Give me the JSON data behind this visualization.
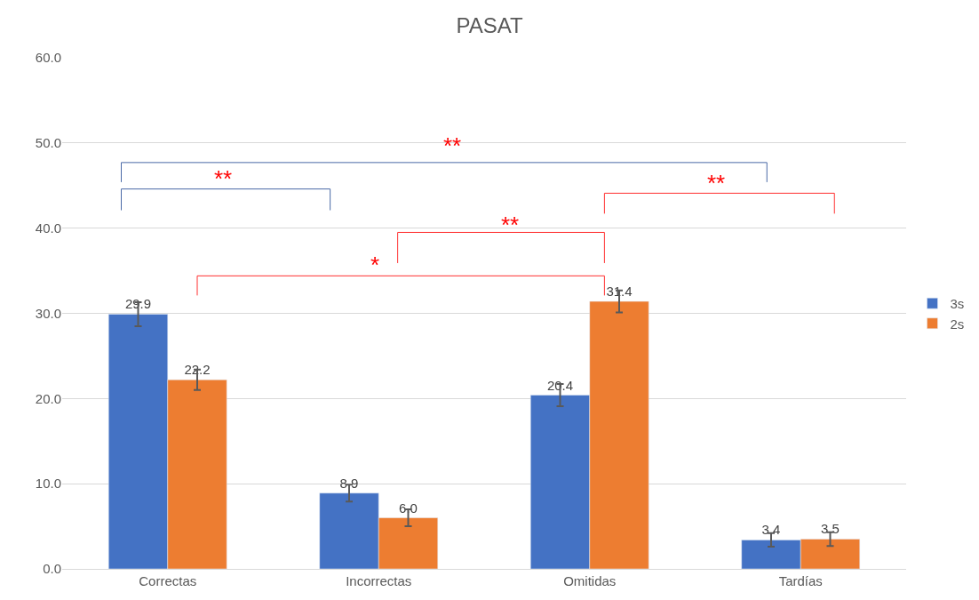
{
  "chart_data": {
    "type": "bar",
    "title": "PASAT",
    "categories": [
      "Correctas",
      "Incorrectas",
      "Omitidas",
      "Tardías"
    ],
    "series": [
      {
        "name": "3s",
        "color": "#4472c4",
        "values": [
          29.9,
          8.9,
          20.4,
          3.4
        ],
        "value_labels": [
          "29.9",
          "8.9",
          "20.4",
          "3.4"
        ],
        "errors": [
          1.4,
          1.0,
          1.3,
          0.8
        ]
      },
      {
        "name": "2s",
        "color": "#ed7d31",
        "values": [
          22.2,
          6.0,
          31.4,
          3.5
        ],
        "value_labels": [
          "22.2",
          "6.0",
          "31.4",
          "3.5"
        ],
        "errors": [
          1.2,
          1.0,
          1.3,
          0.8
        ]
      }
    ],
    "ylim": [
      0,
      60
    ],
    "yticks": [
      {
        "value": 0,
        "label": "0.0"
      },
      {
        "value": 10,
        "label": "10.0"
      },
      {
        "value": 20,
        "label": "20.0"
      },
      {
        "value": 30,
        "label": "30.0"
      },
      {
        "value": 40,
        "label": "40.0"
      },
      {
        "value": 50,
        "label": "50.0"
      },
      {
        "value": 60,
        "label": "60.0"
      }
    ],
    "grid": "y",
    "legend": "right",
    "annotations": [
      "**",
      "**",
      "**",
      "**",
      "*"
    ]
  }
}
